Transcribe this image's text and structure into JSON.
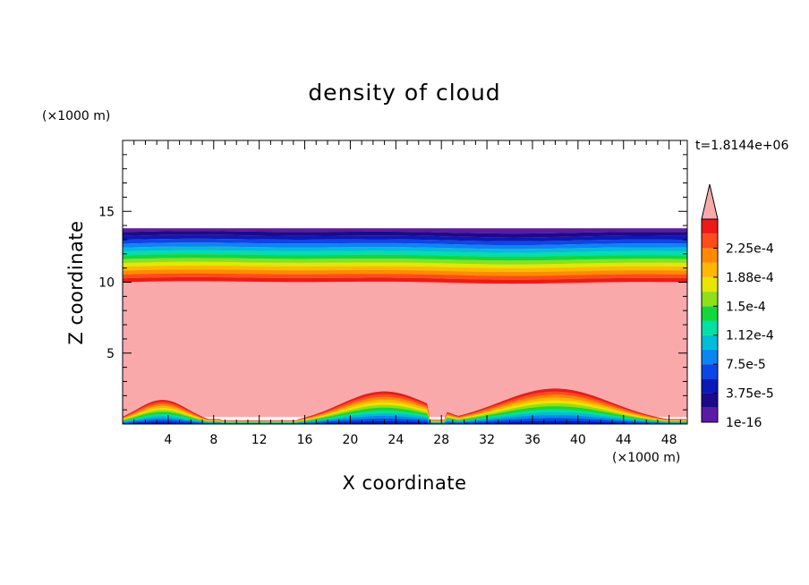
{
  "chart_data": {
    "type": "heatmap",
    "title": "density of cloud",
    "xlabel": "X coordinate",
    "ylabel": "Z coordinate",
    "x_unit": "(×1000 m)",
    "y_unit": "(×1000 m)",
    "time_label": "t=1.8144e+06",
    "xlim": [
      0,
      49.6
    ],
    "ylim": [
      0,
      20
    ],
    "x_ticks": [
      4,
      8,
      12,
      16,
      20,
      24,
      28,
      32,
      36,
      40,
      44,
      48
    ],
    "y_ticks": [
      5,
      10,
      15
    ],
    "colorbar": {
      "levels": [
        1e-16,
        1.875e-05,
        3.75e-05,
        5.625e-05,
        7.5e-05,
        9.375e-05,
        0.0001125,
        0.00013125,
        0.00015,
        0.00016875,
        0.0001875,
        0.00020625,
        0.000225,
        0.00024375
      ],
      "tick_labels": [
        "1e-16",
        "3.75e-5",
        "7.5e-5",
        "1.12e-4",
        "1.5e-4",
        "1.88e-4",
        "2.25e-4"
      ],
      "colors": [
        "#5a1aa6",
        "#1c0a8a",
        "#0a1ab8",
        "#0c46e6",
        "#0a86f2",
        "#00bcd8",
        "#00e0a8",
        "#12d83a",
        "#8ee018",
        "#e6e600",
        "#ffb800",
        "#ff8a00",
        "#ff4c1a",
        "#ee1a1a"
      ],
      "extend_color": "#faa9aa",
      "extend": "max"
    },
    "features": {
      "saturated_region_z_range": [
        0.5,
        10
      ],
      "cloud_top_band_z_range": [
        10,
        13.8
      ],
      "surface_ridges_peak_x": [
        3.5,
        23,
        38
      ],
      "surface_ridges_peak_z": [
        1.7,
        2.3,
        2.5
      ]
    }
  }
}
